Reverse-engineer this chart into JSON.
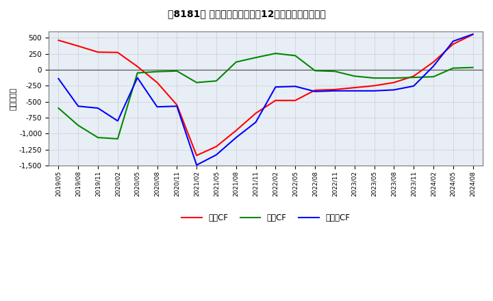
{
  "title": "［8181］ キャッシュフローの12か月移動合計の推移",
  "ylabel": "（百万円）",
  "background_color": "#ffffff",
  "plot_background": "#e8eef5",
  "grid_color": "#aaaaaa",
  "x_labels": [
    "2019/05",
    "2019/08",
    "2019/11",
    "2020/02",
    "2020/05",
    "2020/08",
    "2020/11",
    "2021/02",
    "2021/05",
    "2021/08",
    "2021/11",
    "2022/02",
    "2022/05",
    "2022/08",
    "2022/11",
    "2023/02",
    "2023/05",
    "2023/08",
    "2023/11",
    "2024/02",
    "2024/05",
    "2024/08"
  ],
  "operating_cf": [
    460,
    370,
    275,
    270,
    50,
    -200,
    -550,
    -1340,
    -1200,
    -950,
    -680,
    -480,
    -480,
    -320,
    -310,
    -280,
    -250,
    -200,
    -100,
    120,
    400,
    550
  ],
  "investing_cf": [
    -600,
    -870,
    -1060,
    -1080,
    -50,
    -30,
    -20,
    -200,
    -175,
    120,
    190,
    255,
    220,
    -15,
    -25,
    -100,
    -130,
    -130,
    -120,
    -110,
    25,
    35
  ],
  "free_cf": [
    -140,
    -570,
    -600,
    -800,
    -125,
    -580,
    -570,
    -1490,
    -1330,
    -1060,
    -820,
    -270,
    -260,
    -340,
    -330,
    -330,
    -330,
    -315,
    -255,
    55,
    445,
    555
  ],
  "ylim": [
    -1500,
    600
  ],
  "yticks": [
    -1500,
    -1250,
    -1000,
    -750,
    -500,
    -250,
    0,
    250,
    500
  ],
  "line_colors": {
    "operating": "#ff0000",
    "investing": "#008800",
    "free": "#0000ff"
  },
  "legend_labels": {
    "operating": "営業CF",
    "investing": "投資CF",
    "free": "フリーCF"
  }
}
